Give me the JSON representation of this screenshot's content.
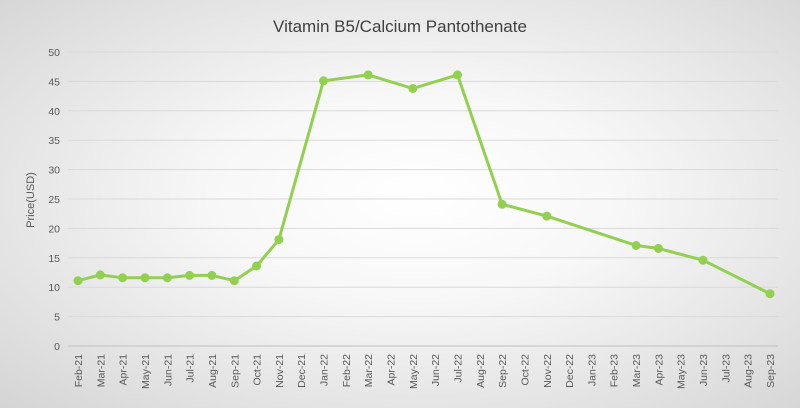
{
  "chart_data": {
    "type": "line",
    "title": "Vitamin B5/Calcium Pantothenate",
    "xlabel": "",
    "ylabel": "Price(USD)",
    "ylim": [
      0,
      50
    ],
    "yticks": [
      0,
      5,
      10,
      15,
      20,
      25,
      30,
      35,
      40,
      45,
      50
    ],
    "grid": true,
    "legend": "none",
    "line_color": "#92d050",
    "categories": [
      "Feb-21",
      "Mar-21",
      "Apr-21",
      "May-21",
      "Jun-21",
      "Jul-21",
      "Aug-21",
      "Sep-21",
      "Oct-21",
      "Nov-21",
      "Dec-21",
      "Jan-22",
      "Feb-22",
      "Mar-22",
      "Apr-22",
      "May-22",
      "Jun-22",
      "Jul-22",
      "Aug-22",
      "Sep-22",
      "Oct-22",
      "Nov-22",
      "Dec-22",
      "Jan-23",
      "Feb-23",
      "Mar-23",
      "Apr-23",
      "May-23",
      "Jun-23",
      "Jul-23",
      "Aug-23",
      "Sep-23"
    ],
    "series": [
      {
        "name": "Vitamin B5/Calcium Pantothenate",
        "points": [
          [
            "Feb-21",
            11.1
          ],
          [
            "Mar-21",
            12.1
          ],
          [
            "Apr-21",
            11.6
          ],
          [
            "May-21",
            11.6
          ],
          [
            "Jun-21",
            11.6
          ],
          [
            "Jul-21",
            12.0
          ],
          [
            "Aug-21",
            12.0
          ],
          [
            "Sep-21",
            11.1
          ],
          [
            "Oct-21",
            13.6
          ],
          [
            "Nov-21",
            18.1
          ],
          [
            "Jan-22",
            45.1
          ],
          [
            "Mar-22",
            46.1
          ],
          [
            "May-22",
            43.8
          ],
          [
            "Jul-22",
            46.1
          ],
          [
            "Sep-22",
            24.1
          ],
          [
            "Nov-22",
            22.1
          ],
          [
            "Mar-23",
            17.1
          ],
          [
            "Apr-23",
            16.6
          ],
          [
            "Jun-23",
            14.6
          ],
          [
            "Sep-23",
            8.9
          ]
        ]
      }
    ]
  }
}
